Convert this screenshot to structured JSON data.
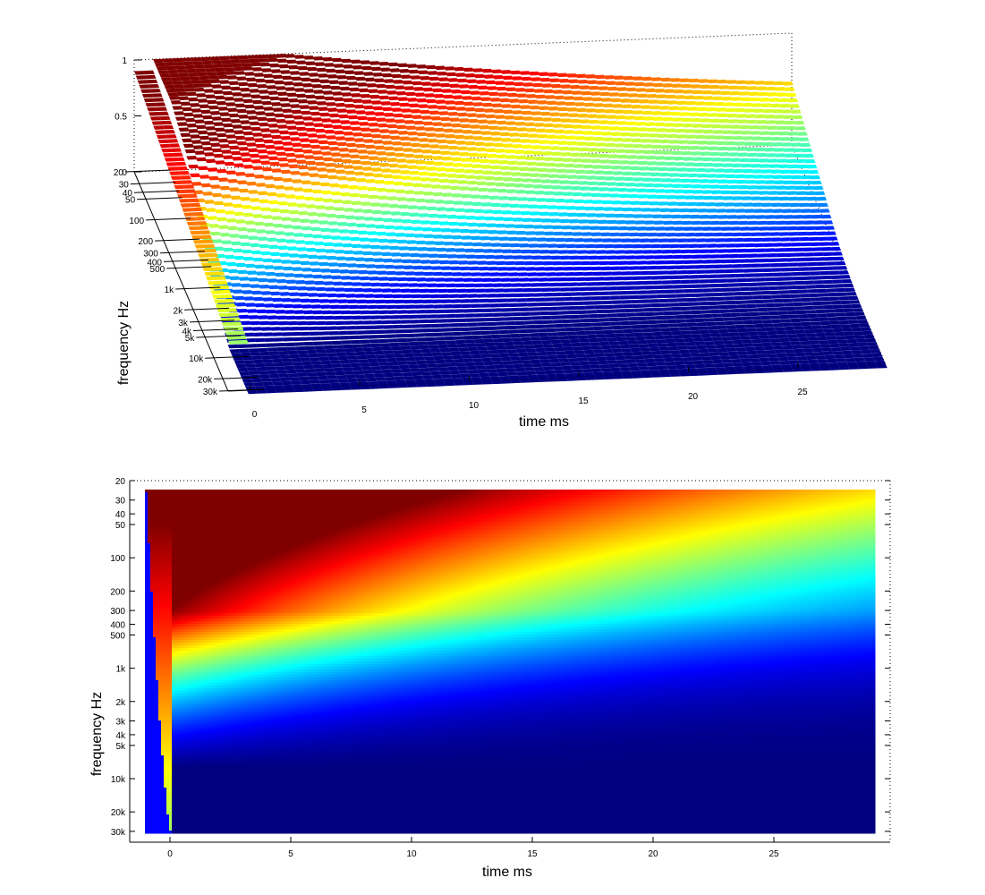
{
  "chart_data": [
    {
      "type": "surface",
      "view": "3d",
      "xlabel": "time   ms",
      "ylabel": "frequency   Hz",
      "zlabel": "",
      "x_ticks": [
        0,
        5,
        10,
        15,
        20,
        25
      ],
      "x_tick_labels": [
        "0",
        "5",
        "10",
        "15",
        "20",
        "25"
      ],
      "xlim": [
        -1,
        29
      ],
      "y_ticks": [
        20,
        30,
        40,
        50,
        100,
        200,
        300,
        400,
        500,
        1000,
        2000,
        3000,
        4000,
        5000,
        10000,
        20000,
        30000
      ],
      "y_tick_labels": [
        "20",
        "30",
        "40",
        "50",
        "100",
        "200",
        "300",
        "400",
        "500",
        "1k",
        "2k",
        "3k",
        "4k",
        "5k",
        "10k",
        "20k",
        "30k"
      ],
      "y_scale": "log",
      "z_ticks": [
        0,
        0.5,
        1
      ],
      "z_tick_labels": [
        "0",
        "0.5",
        "1"
      ],
      "zlim": [
        0,
        1
      ],
      "colormap": "jet",
      "grid": "on"
    },
    {
      "type": "heatmap",
      "view": "2d",
      "xlabel": "time   ms",
      "ylabel": "frequency   Hz",
      "x_ticks": [
        0,
        5,
        10,
        15,
        20,
        25
      ],
      "x_tick_labels": [
        "0",
        "5",
        "10",
        "15",
        "20",
        "25"
      ],
      "xlim": [
        -1,
        29
      ],
      "y_ticks": [
        20,
        30,
        40,
        50,
        100,
        200,
        300,
        400,
        500,
        1000,
        2000,
        3000,
        4000,
        5000,
        10000,
        20000,
        30000
      ],
      "y_tick_labels": [
        "20",
        "30",
        "40",
        "50",
        "100",
        "200",
        "300",
        "400",
        "500",
        "1k",
        "2k",
        "3k",
        "4k",
        "5k",
        "10k",
        "20k",
        "30k"
      ],
      "y_scale": "log",
      "ylim": [
        20,
        30000
      ],
      "colormap": "jet",
      "color_range": [
        0,
        1
      ]
    }
  ]
}
